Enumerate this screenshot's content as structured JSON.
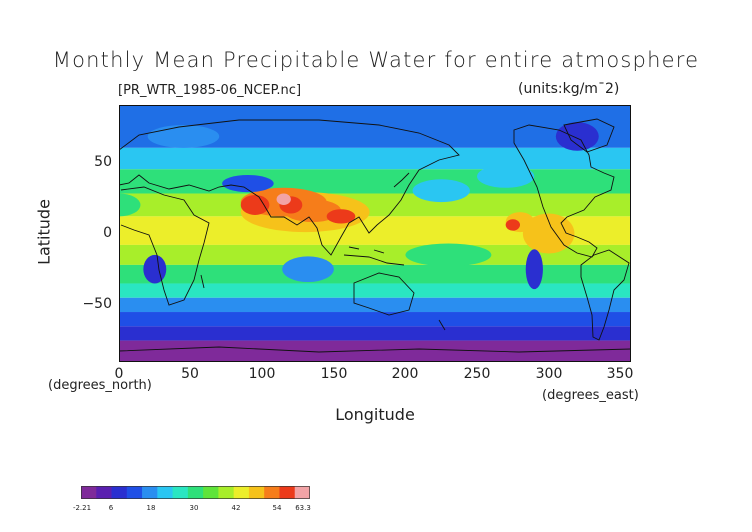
{
  "title": "Monthly Mean Precipitable Water for entire atmosphere",
  "dataset": "[PR_WTR_1985-06_NCEP.nc]",
  "units": "(units:kg/m¯2)",
  "axis_labels": {
    "y": "Latitude",
    "x": "Longitude",
    "y_units": "(degrees_north)",
    "x_units": "(degrees_east)"
  },
  "x_ticks": [
    "0",
    "50",
    "100",
    "150",
    "200",
    "250",
    "300",
    "350"
  ],
  "y_ticks": [
    "50",
    "0",
    "−50"
  ],
  "colorbar": {
    "labels": [
      "-2.21",
      "6",
      "18",
      "30",
      "42",
      "54",
      "63.3"
    ],
    "colors": [
      "#7f2a9a",
      "#5a1fb0",
      "#2a2fd0",
      "#1f4fe6",
      "#2a8ef0",
      "#2ac6f2",
      "#2ae6c2",
      "#2ee07a",
      "#5fe43a",
      "#a8ee2a",
      "#ecee2a",
      "#f6c21a",
      "#f67d1a",
      "#ec3a1a",
      "#f2a3a6"
    ]
  },
  "map": {
    "x_range": [
      0,
      357.5
    ],
    "y_range": [
      -90,
      90
    ],
    "bands": [
      {
        "lat": [
          60,
          90
        ],
        "color": "#1f6fe6"
      },
      {
        "lat": [
          45,
          60
        ],
        "color": "#2ac6f2"
      },
      {
        "lat": [
          28,
          45
        ],
        "color": "#2ee07a"
      },
      {
        "lat": [
          12,
          28
        ],
        "color": "#a8ee2a"
      },
      {
        "lat": [
          -8,
          12
        ],
        "color": "#ecee2a"
      },
      {
        "lat": [
          -22,
          -8
        ],
        "color": "#a8ee2a"
      },
      {
        "lat": [
          -35,
          -22
        ],
        "color": "#2ee07a"
      },
      {
        "lat": [
          -45,
          -35
        ],
        "color": "#2ae6c2"
      },
      {
        "lat": [
          -55,
          -45
        ],
        "color": "#2a8ef0"
      },
      {
        "lat": [
          -65,
          -55
        ],
        "color": "#1f4fe6"
      },
      {
        "lat": [
          -75,
          -65
        ],
        "color": "#2a2fd0"
      },
      {
        "lat": [
          -90,
          -75
        ],
        "color": "#7f2a9a"
      }
    ],
    "blobs": [
      {
        "lon": 130,
        "lat": 15,
        "rlon": 45,
        "rlat": 14,
        "color": "#f6c21a"
      },
      {
        "lon": 115,
        "lat": 22,
        "rlon": 30,
        "rlat": 10,
        "color": "#f67d1a"
      },
      {
        "lon": 135,
        "lat": 16,
        "rlon": 20,
        "rlat": 8,
        "color": "#f67d1a"
      },
      {
        "lon": 95,
        "lat": 20,
        "rlon": 10,
        "rlat": 7,
        "color": "#ec3a1a"
      },
      {
        "lon": 120,
        "lat": 20,
        "rlon": 8,
        "rlat": 6,
        "color": "#ec3a1a"
      },
      {
        "lon": 115,
        "lat": 24,
        "rlon": 5,
        "rlat": 4,
        "color": "#f2a3a6"
      },
      {
        "lon": 280,
        "lat": 8,
        "rlon": 10,
        "rlat": 7,
        "color": "#f6c21a"
      },
      {
        "lon": 275,
        "lat": 6,
        "rlon": 5,
        "rlat": 4,
        "color": "#ec3a1a"
      },
      {
        "lon": 155,
        "lat": 12,
        "rlon": 10,
        "rlat": 5,
        "color": "#ec3a1a"
      },
      {
        "lon": 300,
        "lat": 0,
        "rlon": 18,
        "rlat": 14,
        "color": "#f6c21a"
      },
      {
        "lon": 90,
        "lat": 35,
        "rlon": 18,
        "rlat": 6,
        "color": "#1f4fe6"
      },
      {
        "lon": 25,
        "lat": -25,
        "rlon": 8,
        "rlat": 10,
        "color": "#2a2fd0"
      },
      {
        "lon": 132,
        "lat": -25,
        "rlon": 18,
        "rlat": 9,
        "color": "#2a8ef0"
      },
      {
        "lon": 290,
        "lat": -25,
        "rlon": 6,
        "rlat": 14,
        "color": "#2a2fd0"
      },
      {
        "lon": 270,
        "lat": 40,
        "rlon": 20,
        "rlat": 8,
        "color": "#2ac6f2"
      },
      {
        "lon": 225,
        "lat": 30,
        "rlon": 20,
        "rlat": 8,
        "color": "#2ac6f2"
      },
      {
        "lon": 320,
        "lat": 68,
        "rlon": 15,
        "rlat": 10,
        "color": "#2a2fd0"
      },
      {
        "lon": 45,
        "lat": 68,
        "rlon": 25,
        "rlat": 8,
        "color": "#2a8ef0"
      },
      {
        "lon": 230,
        "lat": -15,
        "rlon": 30,
        "rlat": 8,
        "color": "#2ee07a"
      },
      {
        "lon": 0,
        "lat": 20,
        "rlon": 15,
        "rlat": 8,
        "color": "#2ee07a"
      }
    ]
  }
}
